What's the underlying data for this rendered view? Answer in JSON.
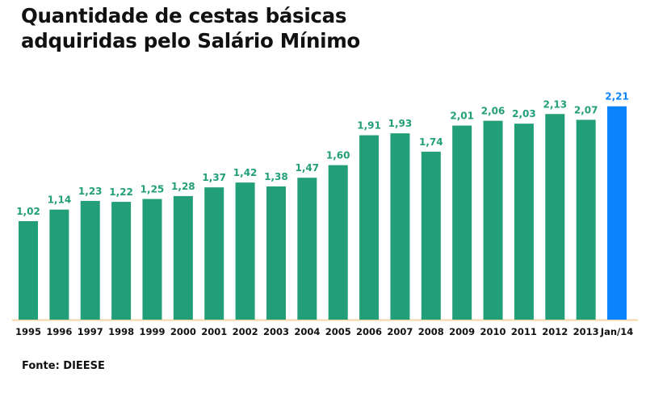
{
  "chart_data": {
    "type": "bar",
    "title": "Quantidade de cestas básicas adquiridas pelo Salário Mínimo",
    "categories": [
      "1995",
      "1996",
      "1997",
      "1998",
      "1999",
      "2000",
      "2001",
      "2002",
      "2003",
      "2004",
      "2005",
      "2006",
      "2007",
      "2008",
      "2009",
      "2010",
      "2011",
      "2012",
      "2013",
      "Jan/14"
    ],
    "values": [
      1.02,
      1.14,
      1.23,
      1.22,
      1.25,
      1.28,
      1.37,
      1.42,
      1.38,
      1.47,
      1.6,
      1.91,
      1.93,
      1.74,
      2.01,
      2.06,
      2.03,
      2.13,
      2.07,
      2.21
    ],
    "data_labels": [
      "1,02",
      "1,14",
      "1,23",
      "1,22",
      "1,25",
      "1,28",
      "1,37",
      "1,42",
      "1,38",
      "1,47",
      "1,60",
      "1,91",
      "1,93",
      "1,74",
      "2,01",
      "2,06",
      "2,03",
      "2,13",
      "2,07",
      "2,21"
    ],
    "ylim": [
      0,
      2.3
    ],
    "grid": false,
    "highlight_index": 19,
    "colors": {
      "bar": "#229e78",
      "highlight": "#0b84fb",
      "axis": "#f6d6a4"
    }
  },
  "source": "Fonte: DIEESE"
}
